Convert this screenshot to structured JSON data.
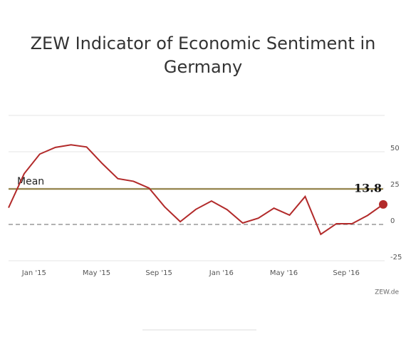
{
  "chart_data": {
    "type": "line",
    "title": [
      "ZEW Indicator of Economic Sentiment in",
      "Germany"
    ],
    "categories": [
      null,
      null,
      "Jan '15",
      null,
      null,
      null,
      "May '15",
      null,
      null,
      null,
      "Sep '15",
      null,
      null,
      null,
      "Jan '16",
      null,
      null,
      null,
      "May '16",
      null,
      null,
      null,
      "Sep '16",
      null,
      null
    ],
    "series": [
      {
        "name": null,
        "color": "#b22a2a",
        "values": [
          11.5,
          34.9,
          48.4,
          53.0,
          54.8,
          53.3,
          41.9,
          31.5,
          29.7,
          25.0,
          12.1,
          1.9,
          10.4,
          16.1,
          10.2,
          1.0,
          4.3,
          11.2,
          6.4,
          19.2,
          -6.8,
          0.5,
          0.5,
          6.2,
          13.8
        ]
      }
    ],
    "mean": {
      "label": "Mean",
      "value": 24.4,
      "color": "#8c7a3c"
    },
    "ylim": [
      -25,
      75
    ],
    "yticks": [
      -25,
      0,
      25,
      50
    ],
    "grid": true,
    "source": "ZEW.de"
  }
}
